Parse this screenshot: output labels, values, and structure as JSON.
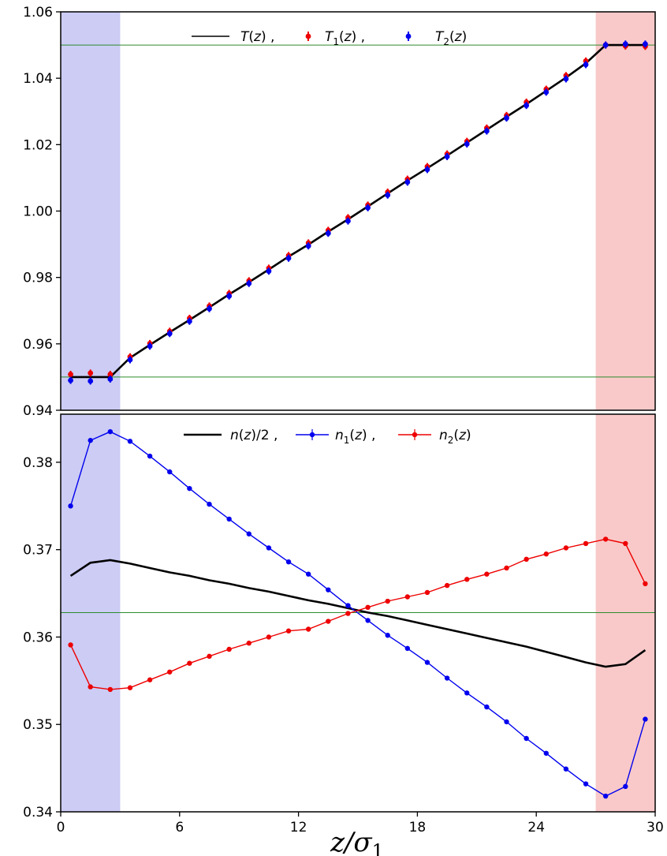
{
  "chart_data": [
    {
      "type": "line",
      "panel": "top",
      "ylim": [
        0.94,
        1.06
      ],
      "xlim": [
        0,
        30
      ],
      "yticks": [
        "0.94",
        "0.96",
        "0.98",
        "1.00",
        "1.02",
        "1.04",
        "1.06"
      ],
      "xticks": [],
      "xlabel": "",
      "ylabel": "",
      "hlines": [
        0.95,
        1.05
      ],
      "hline_color": "#2e8b2e",
      "shaded_regions": [
        {
          "x": [
            0,
            3
          ],
          "color": "#ccccf5"
        },
        {
          "x": [
            27,
            30
          ],
          "color": "#f9c9c9"
        }
      ],
      "legend_position": "top-center",
      "legend": {
        "items": [
          {
            "label": "T(z) ,",
            "color": "#000000",
            "marker": "line"
          },
          {
            "label": "T1(z) ,",
            "color": "#ee0000",
            "marker": "errorbar"
          },
          {
            "label": "T2(z)",
            "color": "#0000ee",
            "marker": "errorbar"
          }
        ]
      },
      "series": [
        {
          "name": "T(z)",
          "color": "#000000",
          "style": "line",
          "x": [
            0.5,
            1.5,
            2.5,
            3.5,
            4.5,
            5.5,
            6.5,
            7.5,
            8.5,
            9.5,
            10.5,
            11.5,
            12.5,
            13.5,
            14.5,
            15.5,
            16.5,
            17.5,
            18.5,
            19.5,
            20.5,
            21.5,
            22.5,
            23.5,
            24.5,
            25.5,
            26.5,
            27.5,
            28.5,
            29.5
          ],
          "y": [
            0.95,
            0.95,
            0.95,
            0.9558,
            0.9597,
            0.9635,
            0.9672,
            0.971,
            0.9749,
            0.9786,
            0.9824,
            0.9863,
            0.9899,
            0.9938,
            0.9975,
            1.0014,
            1.0053,
            1.0092,
            1.0129,
            1.0167,
            1.0206,
            1.0245,
            1.0284,
            1.0322,
            1.0362,
            1.0402,
            1.0445,
            1.05,
            1.05,
            1.05
          ]
        },
        {
          "name": "T1(z)",
          "color": "#ee0000",
          "style": "errorbar",
          "x": [
            0.5,
            1.5,
            2.5,
            3.5,
            4.5,
            5.5,
            6.5,
            7.5,
            8.5,
            9.5,
            10.5,
            11.5,
            12.5,
            13.5,
            14.5,
            15.5,
            16.5,
            17.5,
            18.5,
            19.5,
            20.5,
            21.5,
            22.5,
            23.5,
            24.5,
            25.5,
            26.5,
            27.5,
            28.5,
            29.5
          ],
          "y": [
            0.9508,
            0.9512,
            0.9508,
            0.9561,
            0.9601,
            0.9638,
            0.9677,
            0.9714,
            0.9752,
            0.979,
            0.9828,
            0.9866,
            0.9904,
            0.9942,
            0.998,
            1.0018,
            1.0057,
            1.0096,
            1.0134,
            1.0172,
            1.021,
            1.025,
            1.0288,
            1.0328,
            1.0367,
            1.0408,
            1.0452,
            1.05,
            1.0497,
            1.0496
          ]
        },
        {
          "name": "T2(z)",
          "color": "#0000ee",
          "style": "errorbar",
          "x": [
            0.5,
            1.5,
            2.5,
            3.5,
            4.5,
            5.5,
            6.5,
            7.5,
            8.5,
            9.5,
            10.5,
            11.5,
            12.5,
            13.5,
            14.5,
            15.5,
            16.5,
            17.5,
            18.5,
            19.5,
            20.5,
            21.5,
            22.5,
            23.5,
            24.5,
            25.5,
            26.5,
            27.5,
            28.5,
            29.5
          ],
          "y": [
            0.949,
            0.9488,
            0.9494,
            0.9552,
            0.9593,
            0.9631,
            0.9668,
            0.9706,
            0.9744,
            0.9782,
            0.9819,
            0.9858,
            0.9895,
            0.9933,
            0.997,
            1.001,
            1.0048,
            1.0087,
            1.0125,
            1.0164,
            1.0202,
            1.0241,
            1.028,
            1.0318,
            1.0358,
            1.0398,
            1.0441,
            1.05,
            1.0503,
            1.0503
          ]
        }
      ]
    },
    {
      "type": "line",
      "panel": "bottom",
      "ylim": [
        0.34,
        0.3855
      ],
      "xlim": [
        0,
        30
      ],
      "yticks": [
        "0.34",
        "0.35",
        "0.36",
        "0.37",
        "0.38"
      ],
      "xticks": [
        "0",
        "6",
        "12",
        "18",
        "24",
        "30"
      ],
      "xlabel": "z/σ1",
      "ylabel": "",
      "hlines": [
        0.3628
      ],
      "hline_color": "#2e8b2e",
      "shaded_regions": [
        {
          "x": [
            0,
            3
          ],
          "color": "#ccccf5"
        },
        {
          "x": [
            27,
            30
          ],
          "color": "#f9c9c9"
        }
      ],
      "legend_position": "top-center",
      "legend": {
        "items": [
          {
            "label": "n(z)/2 ,",
            "color": "#000000",
            "marker": "line"
          },
          {
            "label": "n1(z) ,",
            "color": "#0000ee",
            "marker": "line-errorbar"
          },
          {
            "label": "n2(z)",
            "color": "#ee0000",
            "marker": "line-errorbar"
          }
        ]
      },
      "series": [
        {
          "name": "n(z)/2",
          "color": "#000000",
          "style": "line",
          "x": [
            0.5,
            1.5,
            2.5,
            3.5,
            4.5,
            5.5,
            6.5,
            7.5,
            8.5,
            9.5,
            10.5,
            11.5,
            12.5,
            13.5,
            14.5,
            15.5,
            16.5,
            17.5,
            18.5,
            19.5,
            20.5,
            21.5,
            22.5,
            23.5,
            24.5,
            25.5,
            26.5,
            27.5,
            28.5,
            29.5
          ],
          "y": [
            0.367,
            0.3685,
            0.3688,
            0.3684,
            0.3679,
            0.3674,
            0.367,
            0.3665,
            0.3661,
            0.3656,
            0.3652,
            0.3647,
            0.3642,
            0.3638,
            0.3633,
            0.3628,
            0.3624,
            0.3619,
            0.3614,
            0.3609,
            0.3604,
            0.3599,
            0.3594,
            0.3589,
            0.3583,
            0.3577,
            0.3571,
            0.3566,
            0.3569,
            0.3585
          ]
        },
        {
          "name": "n1(z)",
          "color": "#0000ee",
          "style": "line-marker",
          "x": [
            0.5,
            1.5,
            2.5,
            3.5,
            4.5,
            5.5,
            6.5,
            7.5,
            8.5,
            9.5,
            10.5,
            11.5,
            12.5,
            13.5,
            14.5,
            15.5,
            16.5,
            17.5,
            18.5,
            19.5,
            20.5,
            21.5,
            22.5,
            23.5,
            24.5,
            25.5,
            26.5,
            27.5,
            28.5,
            29.5
          ],
          "y": [
            0.375,
            0.3825,
            0.3835,
            0.3824,
            0.3807,
            0.3789,
            0.377,
            0.3752,
            0.3735,
            0.3718,
            0.3702,
            0.3686,
            0.3672,
            0.3654,
            0.3636,
            0.3619,
            0.3602,
            0.3587,
            0.3571,
            0.3553,
            0.3536,
            0.352,
            0.3503,
            0.3484,
            0.3467,
            0.3449,
            0.3432,
            0.3418,
            0.3429,
            0.3506
          ]
        },
        {
          "name": "n2(z)",
          "color": "#ee0000",
          "style": "line-marker",
          "x": [
            0.5,
            1.5,
            2.5,
            3.5,
            4.5,
            5.5,
            6.5,
            7.5,
            8.5,
            9.5,
            10.5,
            11.5,
            12.5,
            13.5,
            14.5,
            15.5,
            16.5,
            17.5,
            18.5,
            19.5,
            20.5,
            21.5,
            22.5,
            23.5,
            24.5,
            25.5,
            26.5,
            27.5,
            28.5,
            29.5
          ],
          "y": [
            0.3591,
            0.3543,
            0.354,
            0.3542,
            0.3551,
            0.356,
            0.357,
            0.3578,
            0.3586,
            0.3593,
            0.36,
            0.3607,
            0.3609,
            0.3618,
            0.3627,
            0.3634,
            0.3641,
            0.3646,
            0.3651,
            0.3659,
            0.3666,
            0.3672,
            0.3679,
            0.3689,
            0.3695,
            0.3702,
            0.3707,
            0.3712,
            0.3707,
            0.3661
          ]
        }
      ]
    }
  ]
}
